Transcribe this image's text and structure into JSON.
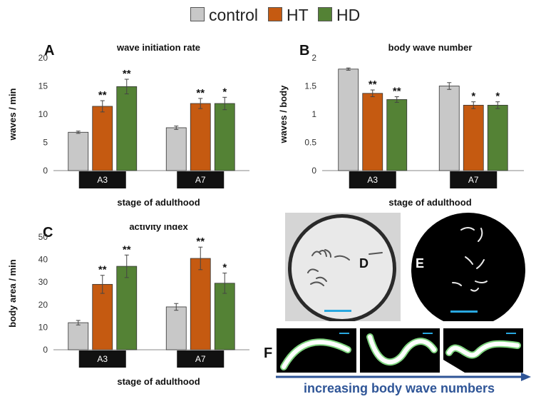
{
  "legend": [
    {
      "label": "control",
      "color": "#c8c8c8"
    },
    {
      "label": "HT",
      "color": "#c55a11"
    },
    {
      "label": "HD",
      "color": "#548235"
    }
  ],
  "chart_data": [
    {
      "panel": "A",
      "type": "bar",
      "title": "wave initiation rate",
      "xlabel": "stage of adulthood",
      "ylabel": "waves / min",
      "categories": [
        "A3",
        "A7"
      ],
      "ylim": [
        0,
        20
      ],
      "yticks": [
        "0",
        "5",
        "10",
        "15",
        "20"
      ],
      "series": [
        {
          "name": "control",
          "values": [
            6.8,
            7.6
          ],
          "errors": [
            0.2,
            0.3
          ],
          "sig": [
            "",
            ""
          ]
        },
        {
          "name": "HT",
          "values": [
            11.4,
            11.9
          ],
          "errors": [
            1.0,
            0.9
          ],
          "sig": [
            "**",
            "**"
          ]
        },
        {
          "name": "HD",
          "values": [
            14.9,
            11.9
          ],
          "errors": [
            1.3,
            1.1
          ],
          "sig": [
            "**",
            "*"
          ]
        }
      ]
    },
    {
      "panel": "B",
      "type": "bar",
      "title": "body wave number",
      "xlabel": "stage of adulthood",
      "ylabel": "waves / body",
      "categories": [
        "A3",
        "A7"
      ],
      "ylim": [
        0,
        2
      ],
      "yticks": [
        "0",
        "0.5",
        "1",
        "1.5",
        "2"
      ],
      "series": [
        {
          "name": "control",
          "values": [
            1.8,
            1.5
          ],
          "errors": [
            0.02,
            0.06
          ],
          "sig": [
            "",
            ""
          ]
        },
        {
          "name": "HT",
          "values": [
            1.37,
            1.16
          ],
          "errors": [
            0.06,
            0.06
          ],
          "sig": [
            "**",
            "*"
          ]
        },
        {
          "name": "HD",
          "values": [
            1.26,
            1.16
          ],
          "errors": [
            0.05,
            0.06
          ],
          "sig": [
            "**",
            "*"
          ]
        }
      ]
    },
    {
      "panel": "C",
      "type": "bar",
      "title": "activity index",
      "xlabel": "stage of adulthood",
      "ylabel": "body area / min",
      "categories": [
        "A3",
        "A7"
      ],
      "ylim": [
        0,
        50
      ],
      "yticks": [
        "0",
        "10",
        "20",
        "30",
        "40",
        "50"
      ],
      "series": [
        {
          "name": "control",
          "values": [
            12,
            19
          ],
          "errors": [
            1.0,
            1.5
          ],
          "sig": [
            "",
            ""
          ]
        },
        {
          "name": "HT",
          "values": [
            29,
            40.5
          ],
          "errors": [
            4.0,
            5.0
          ],
          "sig": [
            "**",
            "**"
          ]
        },
        {
          "name": "HD",
          "values": [
            37,
            29.5
          ],
          "errors": [
            5.0,
            4.5
          ],
          "sig": [
            "**",
            "*"
          ]
        }
      ]
    }
  ],
  "photos": {
    "d_label": "D",
    "e_label": "E",
    "f_label": "F",
    "arrow_caption": "increasing body wave numbers",
    "scale_bar_color": "#29a8e0",
    "arrow_color": "#2f5597"
  }
}
